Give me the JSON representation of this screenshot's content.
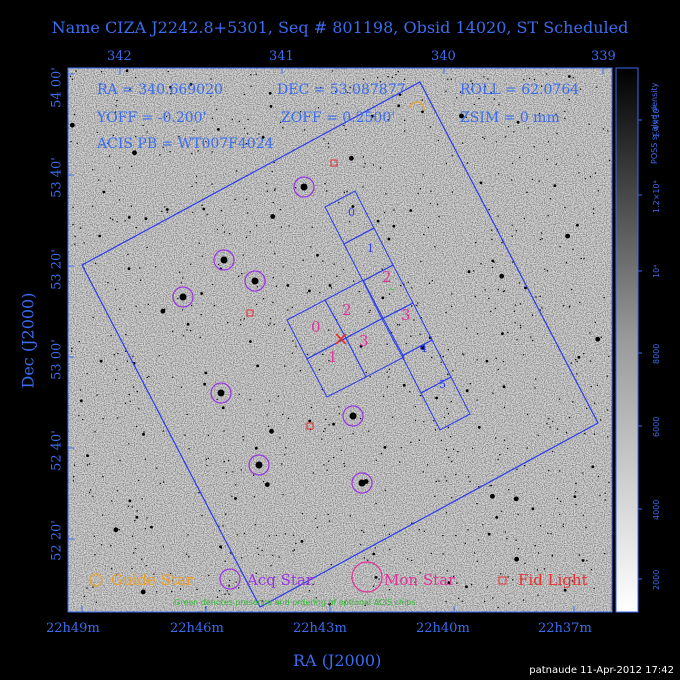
{
  "title": "Name CIZA J2242.8+5301, Seq # 801198, Obsid 14020, ST Scheduled",
  "top_ticks": [
    "342",
    "341",
    "340",
    "339"
  ],
  "left_ticks": [
    "54 00'",
    "53 40'",
    "53 20'",
    "53 00'",
    "52 40'",
    "52 20'"
  ],
  "bottom_ticks": [
    "22h49m",
    "22h46m",
    "22h43m",
    "22h40m",
    "22h37m"
  ],
  "xlabel": "RA (J2000)",
  "ylabel": "Dec (J2000)",
  "info": {
    "ra": "RA = 340.669020",
    "dec": "DEC = 53.087877",
    "roll": "ROLL = 62.0764",
    "yoff": "YOFF = -0.200'",
    "zoff": "ZOFF = 0.2500'",
    "zsim": "ZSIM = 0 mm",
    "acis": "ACIS PB = WT007F4024"
  },
  "legend": {
    "guide": "Guide Star",
    "acq": "Acq Star",
    "mon": "Mon Star",
    "fid": "Fid Light",
    "note": "Green denotes presence and ordering of optional ACIS chips"
  },
  "colorbar": {
    "title": "POSS scaled density",
    "ticks": [
      "2000",
      "4000",
      "6000",
      "8000",
      "10⁴",
      "1.2×10⁴",
      "1.4×10⁴"
    ]
  },
  "chips_s": [
    "0",
    "1",
    "2",
    "3",
    "4",
    "5"
  ],
  "chips_i": [
    "0",
    "1",
    "2",
    "3"
  ],
  "footer": "patnaude 11-Apr-2012 17:42",
  "colors": {
    "blue": "#3a6cf0",
    "magenta": "#e0339a",
    "purple": "#9b33e6",
    "red": "#e53030",
    "orange": "#f0a020",
    "green": "#33bb33"
  }
}
